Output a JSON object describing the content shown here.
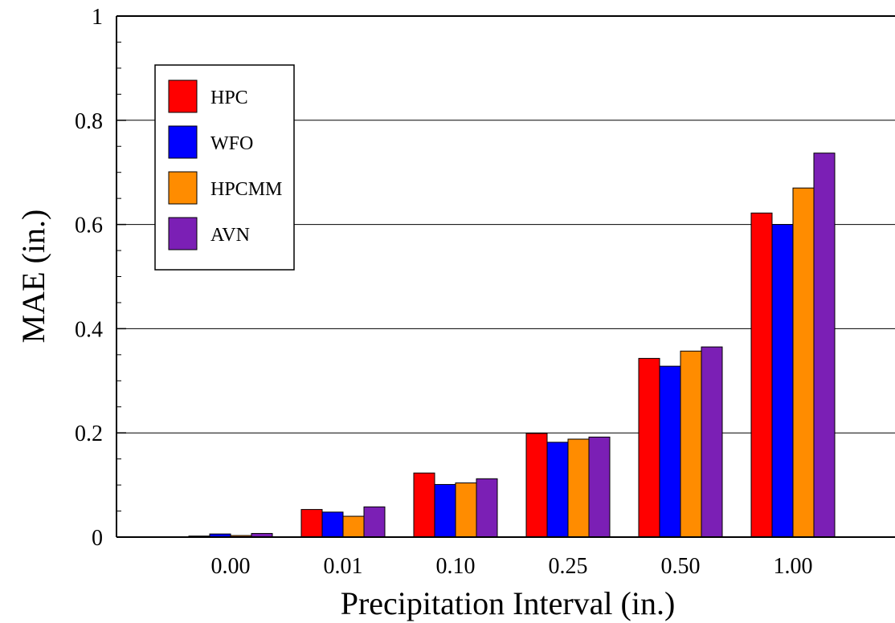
{
  "chart_data": {
    "type": "bar",
    "title": "",
    "xlabel": "Precipitation Interval (in.)",
    "ylabel": "MAE (in.)",
    "categories": [
      "0.00",
      "0.01",
      "0.10",
      "0.25",
      "0.50",
      "1.00"
    ],
    "ylim": [
      0,
      1
    ],
    "yticks": [
      "0",
      "0.2",
      "0.4",
      "0.6",
      "0.8",
      "1"
    ],
    "grid": true,
    "legend_position": "top-left",
    "series": [
      {
        "name": "HPC",
        "color": "#ff0000",
        "values": [
          0.002,
          0.053,
          0.123,
          0.199,
          0.343,
          0.622
        ]
      },
      {
        "name": "WFO",
        "color": "#0000ff",
        "values": [
          0.006,
          0.048,
          0.101,
          0.182,
          0.328,
          0.6
        ]
      },
      {
        "name": "HPCMM",
        "color": "#ff8c00",
        "values": [
          0.003,
          0.04,
          0.104,
          0.188,
          0.357,
          0.67
        ]
      },
      {
        "name": "AVN",
        "color": "#7b1fb5",
        "values": [
          0.007,
          0.058,
          0.112,
          0.192,
          0.365,
          0.737
        ]
      }
    ]
  }
}
